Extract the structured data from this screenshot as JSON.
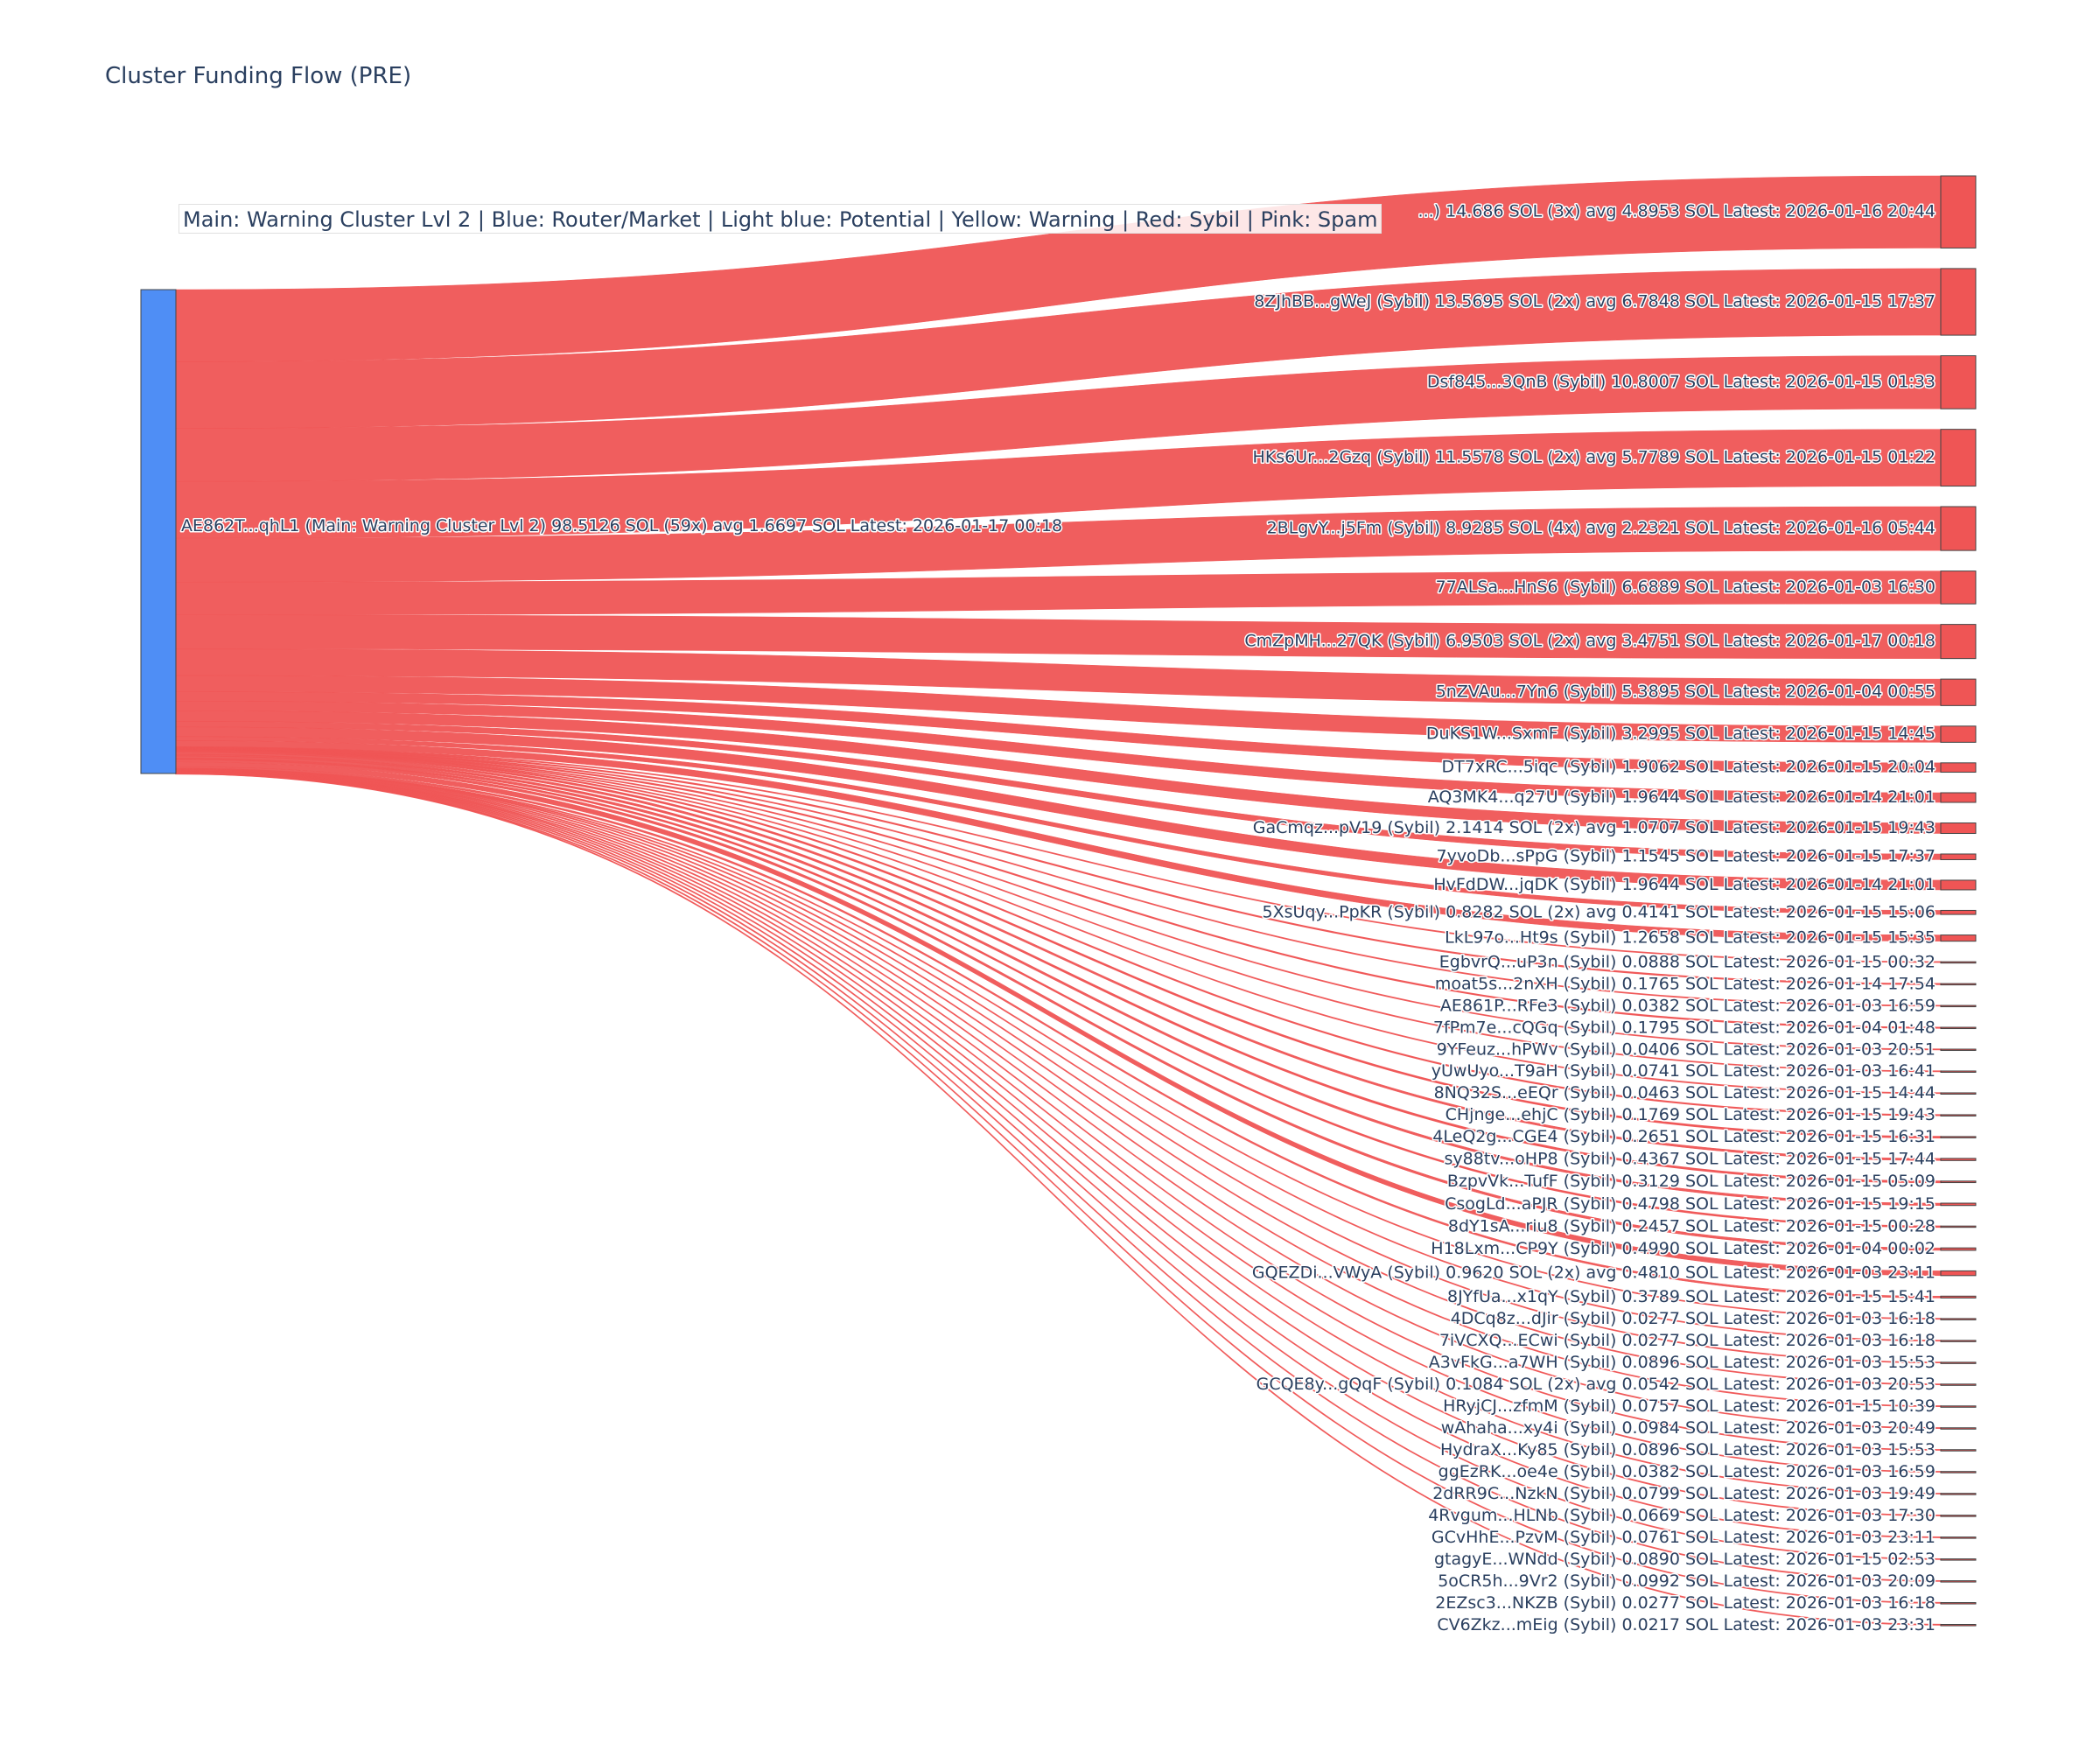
{
  "title": "Cluster Funding Flow (PRE)",
  "legend": "Main: Warning Cluster Lvl 2  |  Blue: Router/Market | Light blue: Potential | Yellow: Warning | Red: Sybil | Pink: Spam",
  "colors": {
    "source_node": "#4f8ef5",
    "target_node": "#ef5555",
    "link": "#ef5555",
    "node_border": "#444444"
  },
  "source": {
    "label": "AE862T...qhL1 (Main: Warning Cluster Lvl 2) 98.5126 SOL (59x) avg 1.6697 SOL Latest: 2026-01-17 00:18",
    "value": 98.5126
  },
  "targets": [
    {
      "label": "...) 14.686 SOL (3x) avg 4.8953 SOL Latest: 2026-01-16 20:44",
      "value": 14.686
    },
    {
      "label": "8ZJhBB...gWeJ (Sybil) 13.5695 SOL (2x) avg 6.7848 SOL Latest: 2026-01-15 17:37",
      "value": 13.5695
    },
    {
      "label": "Dsf845...3QnB (Sybil) 10.8007 SOL Latest: 2026-01-15 01:33",
      "value": 10.8007
    },
    {
      "label": "HKs6Ur...2Gzq (Sybil) 11.5578 SOL (2x) avg 5.7789 SOL Latest: 2026-01-15 01:22",
      "value": 11.5578
    },
    {
      "label": "2BLgvY...j5Fm (Sybil) 8.9285 SOL (4x) avg 2.2321 SOL Latest: 2026-01-16 05:44",
      "value": 8.9285
    },
    {
      "label": "77ALSa...HnS6 (Sybil) 6.6889 SOL Latest: 2026-01-03 16:30",
      "value": 6.6889
    },
    {
      "label": "CmZpMH...27QK (Sybil) 6.9503 SOL (2x) avg 3.4751 SOL Latest: 2026-01-17 00:18",
      "value": 6.9503
    },
    {
      "label": "5nZVAu...7Yn6 (Sybil) 5.3895 SOL Latest: 2026-01-04 00:55",
      "value": 5.3895
    },
    {
      "label": "DuKS1W...SxmF (Sybil) 3.2995 SOL Latest: 2026-01-15 14:45",
      "value": 3.2995
    },
    {
      "label": "DT7xRC...5iqc (Sybil) 1.9062 SOL Latest: 2026-01-15 20:04",
      "value": 1.9062
    },
    {
      "label": "AQ3MK4...q27U (Sybil) 1.9644 SOL Latest: 2026-01-14 21:01",
      "value": 1.9644
    },
    {
      "label": "GaCmqz...pV19 (Sybil) 2.1414 SOL (2x) avg 1.0707 SOL Latest: 2026-01-15 19:43",
      "value": 2.1414
    },
    {
      "label": "7yvoDb...sPpG (Sybil) 1.1545 SOL Latest: 2026-01-15 17:37",
      "value": 1.1545
    },
    {
      "label": "HvFdDW...jqDK (Sybil) 1.9644 SOL Latest: 2026-01-14 21:01",
      "value": 1.9644
    },
    {
      "label": "5XsUqy...PpKR (Sybil) 0.8282 SOL (2x) avg 0.4141 SOL Latest: 2026-01-15 15:06",
      "value": 0.8282
    },
    {
      "label": "LkL97o...Ht9s (Sybil) 1.2658 SOL Latest: 2026-01-15 15:35",
      "value": 1.2658
    },
    {
      "label": "EgbvrQ...uP3n (Sybil) 0.0888 SOL Latest: 2026-01-15 00:32",
      "value": 0.0888
    },
    {
      "label": "moat5s...2nXH (Sybil) 0.1765 SOL Latest: 2026-01-14 17:54",
      "value": 0.1765
    },
    {
      "label": "AE861P...RFe3 (Sybil) 0.0382 SOL Latest: 2026-01-03 16:59",
      "value": 0.0382
    },
    {
      "label": "7fPm7e...cQGq (Sybil) 0.1795 SOL Latest: 2026-01-04 01:48",
      "value": 0.1795
    },
    {
      "label": "9YFeuz...hPWv (Sybil) 0.0406 SOL Latest: 2026-01-03 20:51",
      "value": 0.0406
    },
    {
      "label": "yUwUyo...T9aH (Sybil) 0.0741 SOL Latest: 2026-01-03 16:41",
      "value": 0.0741
    },
    {
      "label": "8NQ32S...eEQr (Sybil) 0.0463 SOL Latest: 2026-01-15 14:44",
      "value": 0.0463
    },
    {
      "label": "CHjnge...ehjC (Sybil) 0.1769 SOL Latest: 2026-01-15 19:43",
      "value": 0.1769
    },
    {
      "label": "4LeQ2g...CGE4 (Sybil) 0.2651 SOL Latest: 2026-01-15 16:31",
      "value": 0.2651
    },
    {
      "label": "sy88tv...oHP8 (Sybil) 0.4367 SOL Latest: 2026-01-15 17:44",
      "value": 0.4367
    },
    {
      "label": "BzpvVk...TufF (Sybil) 0.3129 SOL Latest: 2026-01-15 05:09",
      "value": 0.3129
    },
    {
      "label": "CsogLd...aPJR (Sybil) 0.4798 SOL Latest: 2026-01-15 19:15",
      "value": 0.4798
    },
    {
      "label": "8dY1sA...riu8 (Sybil) 0.2457 SOL Latest: 2026-01-15 00:28",
      "value": 0.2457
    },
    {
      "label": "H18Lxm...CP9Y (Sybil) 0.4990 SOL Latest: 2026-01-04 00:02",
      "value": 0.499
    },
    {
      "label": "GQEZDi...VWyA (Sybil) 0.9620 SOL (2x) avg 0.4810 SOL Latest: 2026-01-03 23:11",
      "value": 0.962
    },
    {
      "label": "8JYfUa...x1qY (Sybil) 0.3789 SOL Latest: 2026-01-15 15:41",
      "value": 0.3789
    },
    {
      "label": "4DCq8z...dJir (Sybil) 0.0277 SOL Latest: 2026-01-03 16:18",
      "value": 0.0277
    },
    {
      "label": "7iVCXQ...ECwi (Sybil) 0.0277 SOL Latest: 2026-01-03 16:18",
      "value": 0.0277
    },
    {
      "label": "A3vFkG...a7WH (Sybil) 0.0896 SOL Latest: 2026-01-03 15:53",
      "value": 0.0896
    },
    {
      "label": "GCQE8y...gQqF (Sybil) 0.1084 SOL (2x) avg 0.0542 SOL Latest: 2026-01-03 20:53",
      "value": 0.1084
    },
    {
      "label": "HRyjCJ...zfmM (Sybil) 0.0757 SOL Latest: 2026-01-15 10:39",
      "value": 0.0757
    },
    {
      "label": "wAhaha...xy4i (Sybil) 0.0984 SOL Latest: 2026-01-03 20:49",
      "value": 0.0984
    },
    {
      "label": "HydraX...Ky85 (Sybil) 0.0896 SOL Latest: 2026-01-03 15:53",
      "value": 0.0896
    },
    {
      "label": "ggEzRK...oe4e (Sybil) 0.0382 SOL Latest: 2026-01-03 16:59",
      "value": 0.0382
    },
    {
      "label": "2dRR9C...NzkN (Sybil) 0.0799 SOL Latest: 2026-01-03 19:49",
      "value": 0.0799
    },
    {
      "label": "4Rvgum...HLNb (Sybil) 0.0669 SOL Latest: 2026-01-03 17:30",
      "value": 0.0669
    },
    {
      "label": "GCvHhE...PzvM (Sybil) 0.0761 SOL Latest: 2026-01-03 23:11",
      "value": 0.0761
    },
    {
      "label": "gtagyE...WNdd (Sybil) 0.0890 SOL Latest: 2026-01-15 02:53",
      "value": 0.089
    },
    {
      "label": "5oCR5h...9Vr2 (Sybil) 0.0992 SOL Latest: 2026-01-03 20:09",
      "value": 0.0992
    },
    {
      "label": "2EZsc3...NKZB (Sybil) 0.0277 SOL Latest: 2026-01-03 16:18",
      "value": 0.0277
    },
    {
      "label": "CV6Zkz...mEig (Sybil) 0.0217 SOL Latest: 2026-01-03 23:31",
      "value": 0.0217
    }
  ]
}
